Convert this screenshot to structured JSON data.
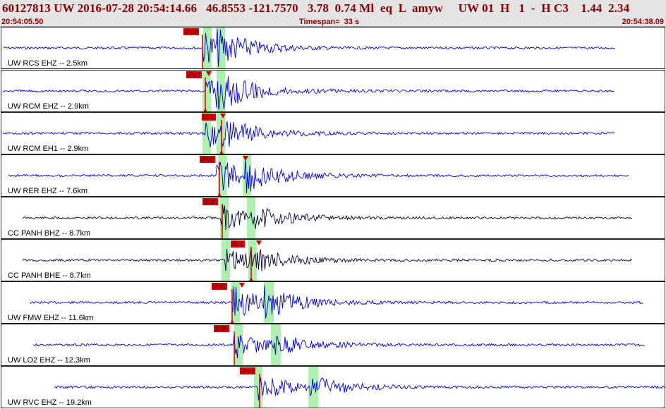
{
  "header": {
    "event_id": "60127813",
    "network": "UW",
    "datetime": "2016-07-28 20:54:14.66",
    "lat": "46.8553",
    "lon": "-121.7570",
    "depth": "3.78",
    "magnitude": "0.74",
    "mag_type": "Ml",
    "event_type": "eq",
    "flag": "L",
    "author": "amyw",
    "source": "UW",
    "version": "01",
    "gtype": "H",
    "count": "1",
    "dash": "-",
    "quality_code": "H C3",
    "val1": "1.44",
    "val2": "2.34",
    "time_start": "20:54:05.50",
    "timespan": "Timespan=  33 s",
    "time_end": "20:54:38.09"
  },
  "colors": {
    "trace_blue": "#0000cc",
    "trace_dark": "#000033",
    "pick_red": "#d80000",
    "window_green": "#aef0ae",
    "header_text": "#8b0000"
  },
  "channels": [
    {
      "label": "UW RCS EHZ -- 2.5km",
      "color": "#0000cc",
      "pick_label": "iPc0",
      "tri_marker": false
    },
    {
      "label": "UW RCM EHZ -- 2.9km",
      "color": "#0000cc",
      "pick_label": "iPc0",
      "tri_marker": true
    },
    {
      "label": "UW RCM EH1 -- 2.9km",
      "color": "#0000cc",
      "pick_label": "iS 1",
      "tri_marker": true
    },
    {
      "label": "UW RER EHZ -- 7.6km",
      "color": "#0000cc",
      "pick_label": "iPc0",
      "tri_marker": true
    },
    {
      "label": "CC PANH BHZ -- 8.7km",
      "color": "#000033",
      "pick_label": "iPc0",
      "tri_marker": false
    },
    {
      "label": "CC PANH BHE -- 8.7km",
      "color": "#000033",
      "pick_label": "iS 1",
      "tri_marker": true
    },
    {
      "label": "UW FMW EHZ -- 11.6km",
      "color": "#0000cc",
      "pick_label": "iPd1",
      "tri_marker": true
    },
    {
      "label": "UW LO2 EHZ -- 12.3km",
      "color": "#0000cc",
      "pick_label": "iPd0",
      "tri_marker": false
    },
    {
      "label": "UW RVC EHZ -- 19.2km",
      "color": "#0000cc",
      "pick_label": "iPc0",
      "tri_marker": false
    }
  ]
}
